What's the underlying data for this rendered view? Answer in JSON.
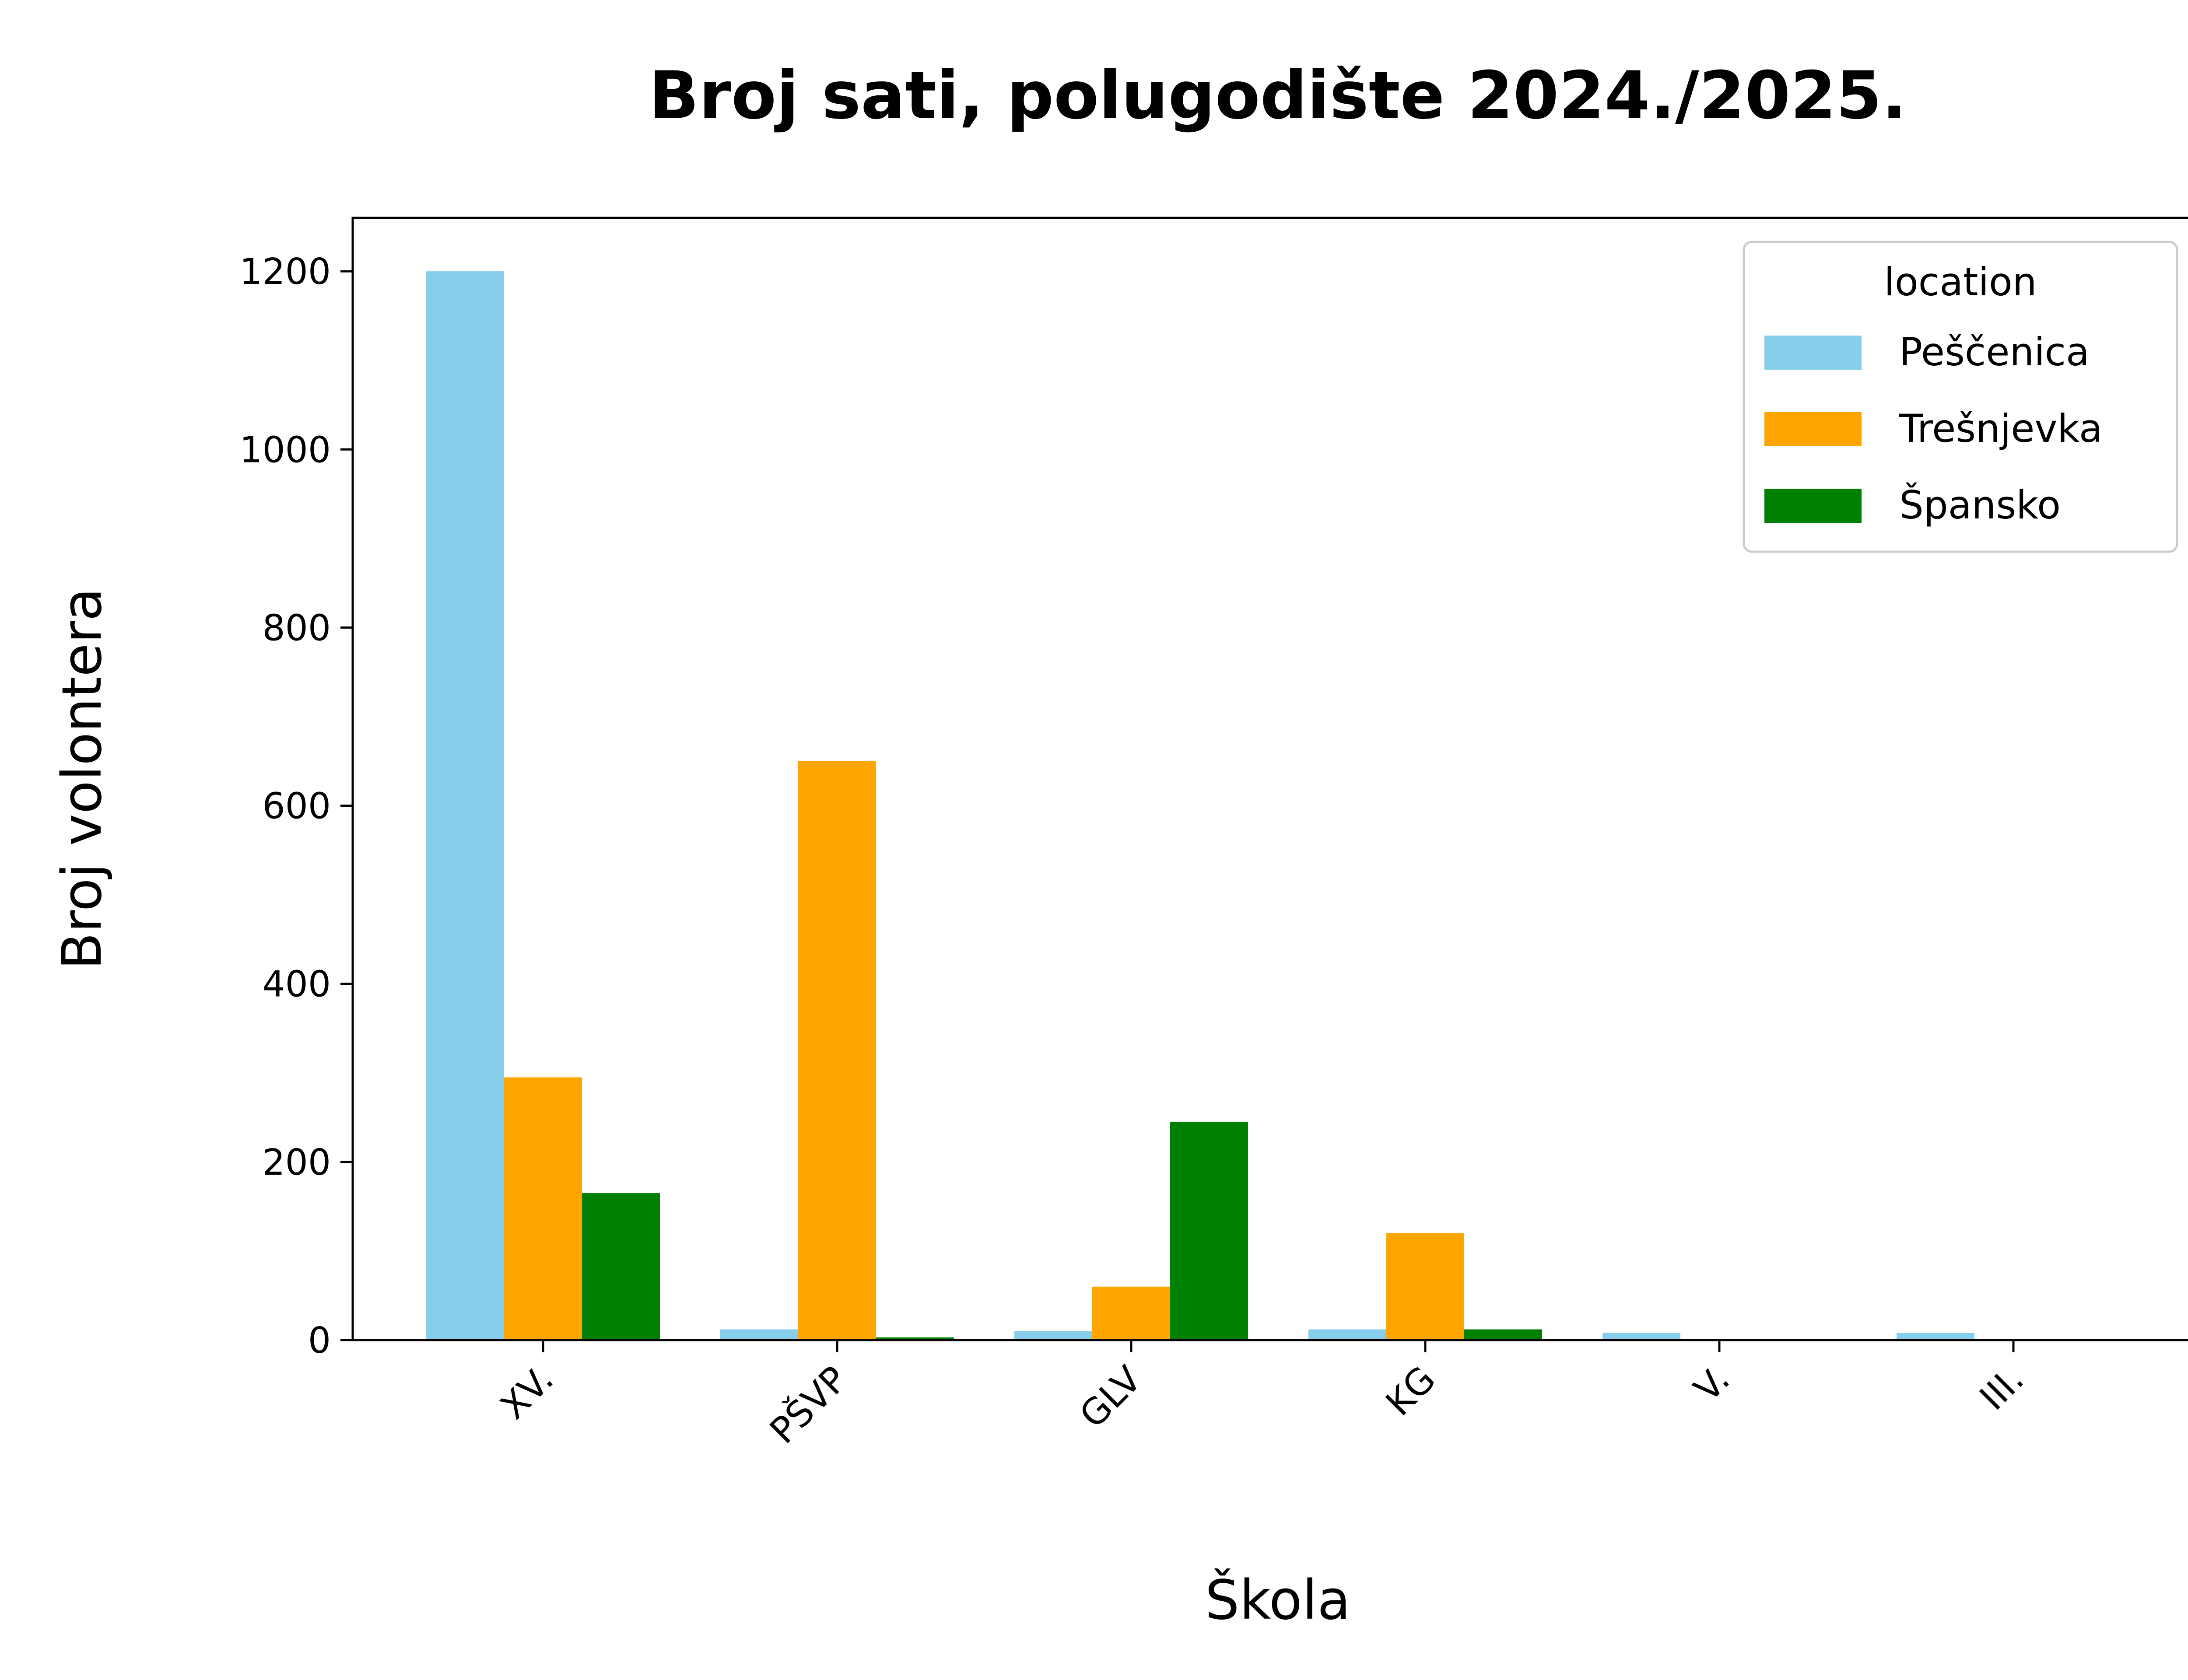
{
  "chart_data": {
    "type": "bar",
    "title": "Broj sati, polugodište 2024./2025.",
    "xlabel": "Škola",
    "ylabel": "Broj volontera",
    "categories": [
      "XV.",
      "PŠVP",
      "GLV",
      "KG",
      "V.",
      "III."
    ],
    "series": [
      {
        "name": "Peščenica",
        "color": "#87CEEB",
        "values": [
          1200,
          12,
          10,
          12,
          8,
          8
        ]
      },
      {
        "name": "Trešnjevka",
        "color": "#FFA500",
        "values": [
          295,
          650,
          60,
          120,
          0,
          0
        ]
      },
      {
        "name": "Špansko",
        "color": "#008000",
        "values": [
          165,
          3,
          245,
          12,
          0,
          0
        ]
      }
    ],
    "ylim": [
      0,
      1260
    ],
    "yticks": [
      0,
      200,
      400,
      600,
      800,
      1000,
      1200
    ],
    "legend": {
      "title": "location",
      "position": "top-right"
    },
    "grid": false
  }
}
